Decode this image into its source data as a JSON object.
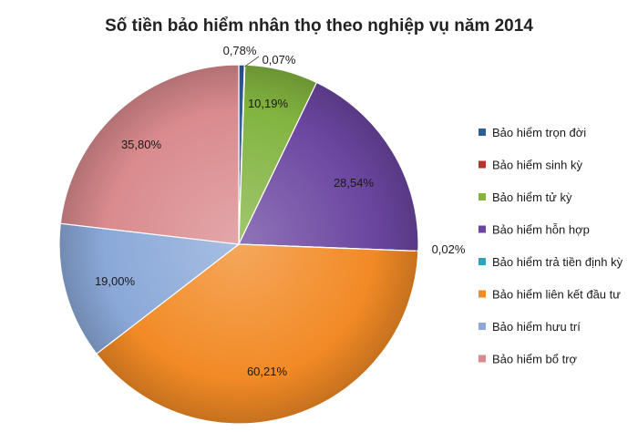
{
  "chart_data": {
    "type": "pie",
    "title": "Số tiền bảo hiểm nhân thọ theo nghiệp vụ năm 2014",
    "legend_position": "right",
    "slices": [
      {
        "name": "Bảo hiểm trọn đời",
        "value": 0.78,
        "label": "0,78%",
        "color": "#2f5d9a"
      },
      {
        "name": "Bảo hiểm sinh kỳ",
        "value": 0.07,
        "label": "0,07%",
        "color": "#b8312f"
      },
      {
        "name": "Bảo hiểm tử kỳ",
        "value": 10.19,
        "label": "10,19%",
        "color": "#82b440"
      },
      {
        "name": "Bảo hiểm hỗn hợp",
        "value": 28.54,
        "label": "28,54%",
        "color": "#6b46a0"
      },
      {
        "name": "Bảo hiểm trả tiền định kỳ",
        "value": 0.02,
        "label": "0,02%",
        "color": "#2fa3c2"
      },
      {
        "name": "Bảo hiểm liên kết đầu tư",
        "value": 60.21,
        "label": "60,21%",
        "color": "#f28a25"
      },
      {
        "name": "Bảo hiểm hưu trí",
        "value": 19.0,
        "label": "19,00%",
        "color": "#8aa8d8"
      },
      {
        "name": "Bảo hiểm bổ trợ",
        "value": 35.8,
        "label": "35,80%",
        "color": "#d98a8d"
      }
    ]
  }
}
